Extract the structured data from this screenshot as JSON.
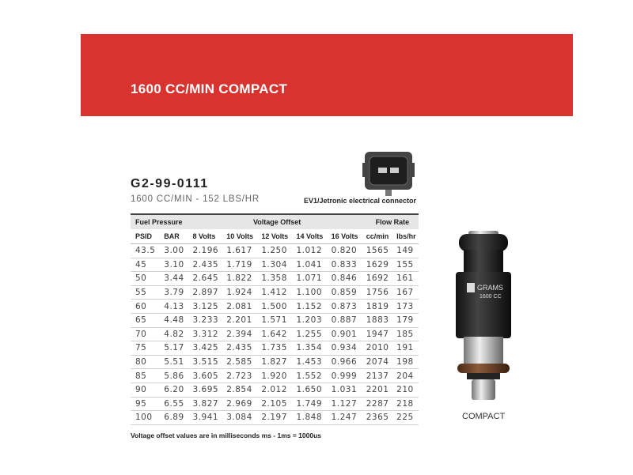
{
  "banner": {
    "title": "1600 CC/MIN COMPACT",
    "color": "#d8332f"
  },
  "product": {
    "part_number": "G2-99-0111",
    "subtitle": "1600 CC/MIN - 152 LBS/HR"
  },
  "connector": {
    "label": "EV1/Jetronic electrical connector",
    "icon": "ev1-connector-icon"
  },
  "table": {
    "groups": [
      "Fuel Pressure",
      "Voltage Offset",
      "Flow Rate"
    ],
    "columns": [
      "PSID",
      "BAR",
      "8 Volts",
      "10 Volts",
      "12 Volts",
      "14 Volts",
      "16 Volts",
      "cc/min",
      "lbs/hr"
    ],
    "rows": [
      [
        "43.5",
        "3.00",
        "2.196",
        "1.617",
        "1.250",
        "1.012",
        "0.820",
        "1565",
        "149"
      ],
      [
        "45",
        "3.10",
        "2.435",
        "1.719",
        "1.304",
        "1.041",
        "0.833",
        "1629",
        "155"
      ],
      [
        "50",
        "3.44",
        "2.645",
        "1.822",
        "1.358",
        "1.071",
        "0.846",
        "1692",
        "161"
      ],
      [
        "55",
        "3.79",
        "2.897",
        "1.924",
        "1.412",
        "1.100",
        "0.859",
        "1756",
        "167"
      ],
      [
        "60",
        "4.13",
        "3.125",
        "2.081",
        "1.500",
        "1.152",
        "0.873",
        "1819",
        "173"
      ],
      [
        "65",
        "4.48",
        "3.233",
        "2.201",
        "1.571",
        "1.203",
        "0.887",
        "1883",
        "179"
      ],
      [
        "70",
        "4.82",
        "3.312",
        "2.394",
        "1.642",
        "1.255",
        "0.901",
        "1947",
        "185"
      ],
      [
        "75",
        "5.17",
        "3.425",
        "2.435",
        "1.735",
        "1.354",
        "0.934",
        "2010",
        "191"
      ],
      [
        "80",
        "5.51",
        "3.515",
        "2.585",
        "1.827",
        "1.453",
        "0.966",
        "2074",
        "198"
      ],
      [
        "85",
        "5.86",
        "3.605",
        "2.723",
        "1.920",
        "1.552",
        "0.999",
        "2137",
        "204"
      ],
      [
        "90",
        "6.20",
        "3.695",
        "2.854",
        "2.012",
        "1.650",
        "1.031",
        "2201",
        "210"
      ],
      [
        "95",
        "6.55",
        "3.827",
        "2.969",
        "2.105",
        "1.749",
        "1.127",
        "2287",
        "218"
      ],
      [
        "100",
        "6.89",
        "3.941",
        "3.084",
        "2.197",
        "1.848",
        "1.247",
        "2365",
        "225"
      ]
    ]
  },
  "note": "Voltage offset values are in milliseconds ms - 1ms = 1000us",
  "injector": {
    "brand": "GRAMS",
    "marking": "1600 CC",
    "caption": "COMPACT"
  }
}
